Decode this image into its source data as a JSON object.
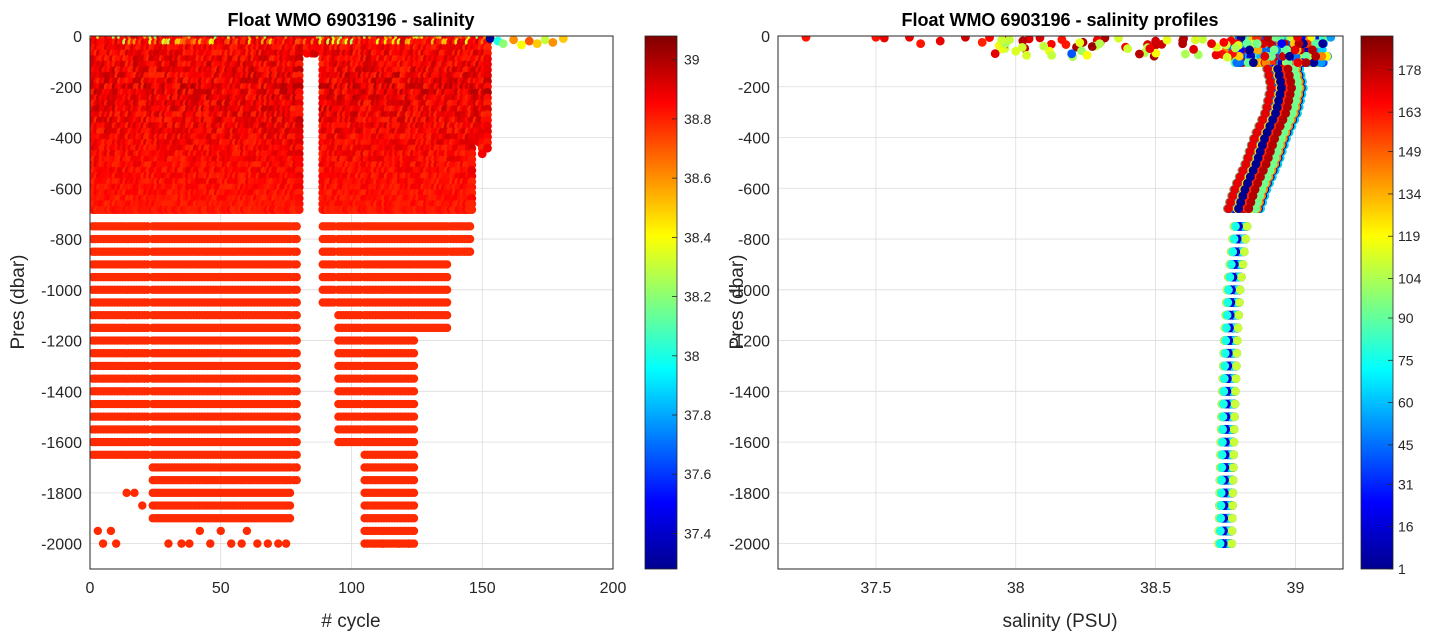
{
  "chart_data": [
    {
      "type": "scatter",
      "title": "Float WMO 6903196 - salinity",
      "xlabel": "# cycle",
      "ylabel": "Pres (dbar)",
      "xlim": [
        0,
        200
      ],
      "ylim": [
        -2100,
        0
      ],
      "xticks": [
        "0",
        "50",
        "100",
        "150",
        "200"
      ],
      "yticks": [
        "0",
        "-200",
        "-400",
        "-600",
        "-800",
        "-1000",
        "-1200",
        "-1400",
        "-1600",
        "-1800",
        "-2000"
      ],
      "grid": true,
      "colormap": "jet",
      "colorbar": {
        "label_values": [
          "39",
          "38.8",
          "38.6",
          "38.4",
          "38.2",
          "38",
          "37.8",
          "37.6",
          "37.4"
        ],
        "range": [
          37.28,
          39.08
        ]
      },
      "dense_region": {
        "cycles": [
          1,
          152
        ],
        "pressure": [
          -700,
          0
        ],
        "salinity_range": [
          38.7,
          39.0
        ]
      },
      "deep_groups": [
        {
          "cycles": [
            1,
            23
          ],
          "deepest": -1650,
          "salinity": 38.78
        },
        {
          "cycles": [
            24,
            77
          ],
          "deepest": -1900,
          "salinity": 38.78
        },
        {
          "cycles": [
            78,
            80
          ],
          "deepest": -1750,
          "salinity": 38.78
        },
        {
          "cycles": [
            89,
            94
          ],
          "deepest": -1050,
          "salinity": 38.78
        },
        {
          "cycles": [
            95,
            104
          ],
          "deepest": -1600,
          "salinity": 38.78
        },
        {
          "cycles": [
            105,
            124
          ],
          "deepest": -2000,
          "salinity": 38.78
        },
        {
          "cycles": [
            125,
            137
          ],
          "deepest": -1150,
          "salinity": 38.78
        },
        {
          "cycles": [
            138,
            146
          ],
          "deepest": -850,
          "salinity": 38.78
        }
      ],
      "surface_points": [
        {
          "cycle": 153,
          "pressure": -10,
          "salinity": 37.3
        },
        {
          "cycle": 156,
          "pressure": -20,
          "salinity": 38.0
        },
        {
          "cycle": 158,
          "pressure": -30,
          "salinity": 38.2
        },
        {
          "cycle": 162,
          "pressure": -15,
          "salinity": 38.6
        },
        {
          "cycle": 165,
          "pressure": -35,
          "salinity": 38.4
        },
        {
          "cycle": 168,
          "pressure": -20,
          "salinity": 38.7
        },
        {
          "cycle": 171,
          "pressure": -30,
          "salinity": 38.5
        },
        {
          "cycle": 174,
          "pressure": -15,
          "salinity": 38.3
        },
        {
          "cycle": 177,
          "pressure": -25,
          "salinity": 38.6
        },
        {
          "cycle": 181,
          "pressure": -10,
          "salinity": 38.5
        }
      ]
    },
    {
      "type": "scatter",
      "title": "Float WMO 6903196 - salinity profiles",
      "xlabel": "salinity (PSU)",
      "ylabel": "Pres (dbar)",
      "xlim": [
        37.15,
        39.17
      ],
      "ylim": [
        -2100,
        0
      ],
      "xticks": [
        "37.5",
        "38",
        "38.5",
        "39"
      ],
      "xtick_values": [
        37.5,
        38,
        38.5,
        39
      ],
      "yticks": [
        "0",
        "-200",
        "-400",
        "-600",
        "-800",
        "-1000",
        "-1200",
        "-1400",
        "-1600",
        "-1800",
        "-2000"
      ],
      "grid": true,
      "colormap": "jet",
      "colorbar": {
        "label_values": [
          "178",
          "163",
          "149",
          "134",
          "119",
          "104",
          "90",
          "75",
          "60",
          "45",
          "31",
          "16",
          "1"
        ],
        "range": [
          1,
          190
        ]
      },
      "mean_profile": [
        {
          "pressure": 0,
          "salinity": 38.95
        },
        {
          "pressure": -50,
          "salinity": 38.93
        },
        {
          "pressure": -100,
          "salinity": 38.95
        },
        {
          "pressure": -200,
          "salinity": 38.97
        },
        {
          "pressure": -300,
          "salinity": 38.95
        },
        {
          "pressure": -400,
          "salinity": 38.91
        },
        {
          "pressure": -500,
          "salinity": 38.88
        },
        {
          "pressure": -600,
          "salinity": 38.84
        },
        {
          "pressure": -700,
          "salinity": 38.81
        },
        {
          "pressure": -800,
          "salinity": 38.8
        },
        {
          "pressure": -1000,
          "salinity": 38.78
        },
        {
          "pressure": -1200,
          "salinity": 38.77
        },
        {
          "pressure": -1500,
          "salinity": 38.76
        },
        {
          "pressure": -2000,
          "salinity": 38.75
        }
      ],
      "surface_outliers": [
        {
          "salinity": 37.25,
          "pressure": -5,
          "cycle": 163
        },
        {
          "salinity": 37.5,
          "pressure": -5,
          "cycle": 163
        },
        {
          "salinity": 37.53,
          "pressure": -8,
          "cycle": 170
        },
        {
          "salinity": 37.62,
          "pressure": -5,
          "cycle": 170
        },
        {
          "salinity": 37.66,
          "pressure": -30,
          "cycle": 163
        },
        {
          "salinity": 37.73,
          "pressure": -20,
          "cycle": 170
        },
        {
          "salinity": 37.82,
          "pressure": -5,
          "cycle": 175
        },
        {
          "salinity": 37.88,
          "pressure": -25,
          "cycle": 160
        },
        {
          "salinity": 37.95,
          "pressure": -15,
          "cycle": 110
        },
        {
          "salinity": 38.0,
          "pressure": -60,
          "cycle": 112
        },
        {
          "salinity": 38.1,
          "pressure": -40,
          "cycle": 108
        },
        {
          "salinity": 38.2,
          "pressure": -70,
          "cycle": 40
        },
        {
          "salinity": 38.3,
          "pressure": -30,
          "cycle": 105
        },
        {
          "salinity": 38.4,
          "pressure": -50,
          "cycle": 110
        },
        {
          "salinity": 38.5,
          "pressure": -20,
          "cycle": 175
        },
        {
          "salinity": 38.6,
          "pressure": -10,
          "cycle": 180
        },
        {
          "salinity": 38.7,
          "pressure": -30,
          "cycle": 170
        }
      ]
    }
  ]
}
